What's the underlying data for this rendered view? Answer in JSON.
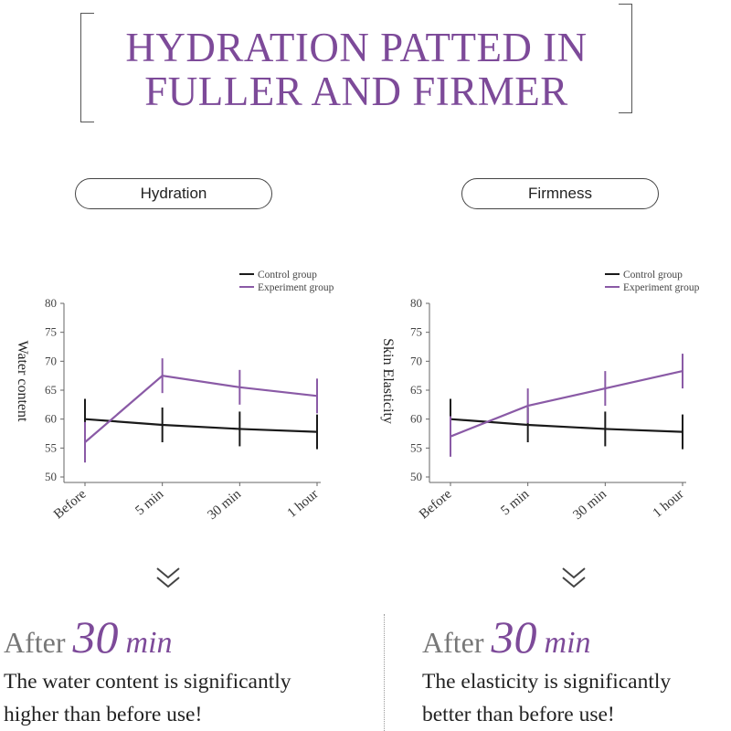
{
  "header": {
    "title_line1": "HYDRATION PATTED IN",
    "title_line2": "FULLER AND FIRMER"
  },
  "colors": {
    "accent": "#7d4a99",
    "control": "#1a1a1a",
    "experiment": "#8a5aa6"
  },
  "panels": [
    {
      "pill_label": "Hydration",
      "after_prefix": "After",
      "after_number": "30",
      "after_unit": "min",
      "desc_line1": "The water content is significantly",
      "desc_line2": "higher than before use!"
    },
    {
      "pill_label": "Firmness",
      "after_prefix": "After",
      "after_number": "30",
      "after_unit": "min",
      "desc_line1": "The elasticity is significantly",
      "desc_line2": "better than before use!"
    }
  ],
  "chart_data": [
    {
      "type": "line",
      "title": "",
      "ylabel": "Water content",
      "xlabel": "",
      "categories": [
        "Before",
        "5 min",
        "30 min",
        "1 hour"
      ],
      "ylim": [
        50,
        80
      ],
      "yticks": [
        50,
        55,
        60,
        65,
        70,
        75,
        80
      ],
      "legend_position": "top-right",
      "series": [
        {
          "name": "Control group",
          "color": "#1a1a1a",
          "values": [
            60,
            59,
            58.3,
            57.8
          ],
          "err": [
            3.5,
            3,
            3,
            3
          ]
        },
        {
          "name": "Experiment group",
          "color": "#8a5aa6",
          "values": [
            56,
            67.5,
            65.5,
            64
          ],
          "err": [
            3.5,
            3,
            3,
            3
          ]
        }
      ]
    },
    {
      "type": "line",
      "title": "",
      "ylabel": "Skin Elasticity",
      "xlabel": "",
      "categories": [
        "Before",
        "5 min",
        "30 min",
        "1 hour"
      ],
      "ylim": [
        50,
        80
      ],
      "yticks": [
        50,
        55,
        60,
        65,
        70,
        75,
        80
      ],
      "legend_position": "top-right",
      "series": [
        {
          "name": "Control group",
          "color": "#1a1a1a",
          "values": [
            60,
            59,
            58.3,
            57.8
          ],
          "err": [
            3.5,
            3,
            3,
            3
          ]
        },
        {
          "name": "Experiment group",
          "color": "#8a5aa6",
          "values": [
            57,
            62.3,
            65.3,
            68.3
          ],
          "err": [
            3.5,
            3,
            3,
            3
          ]
        }
      ]
    }
  ]
}
